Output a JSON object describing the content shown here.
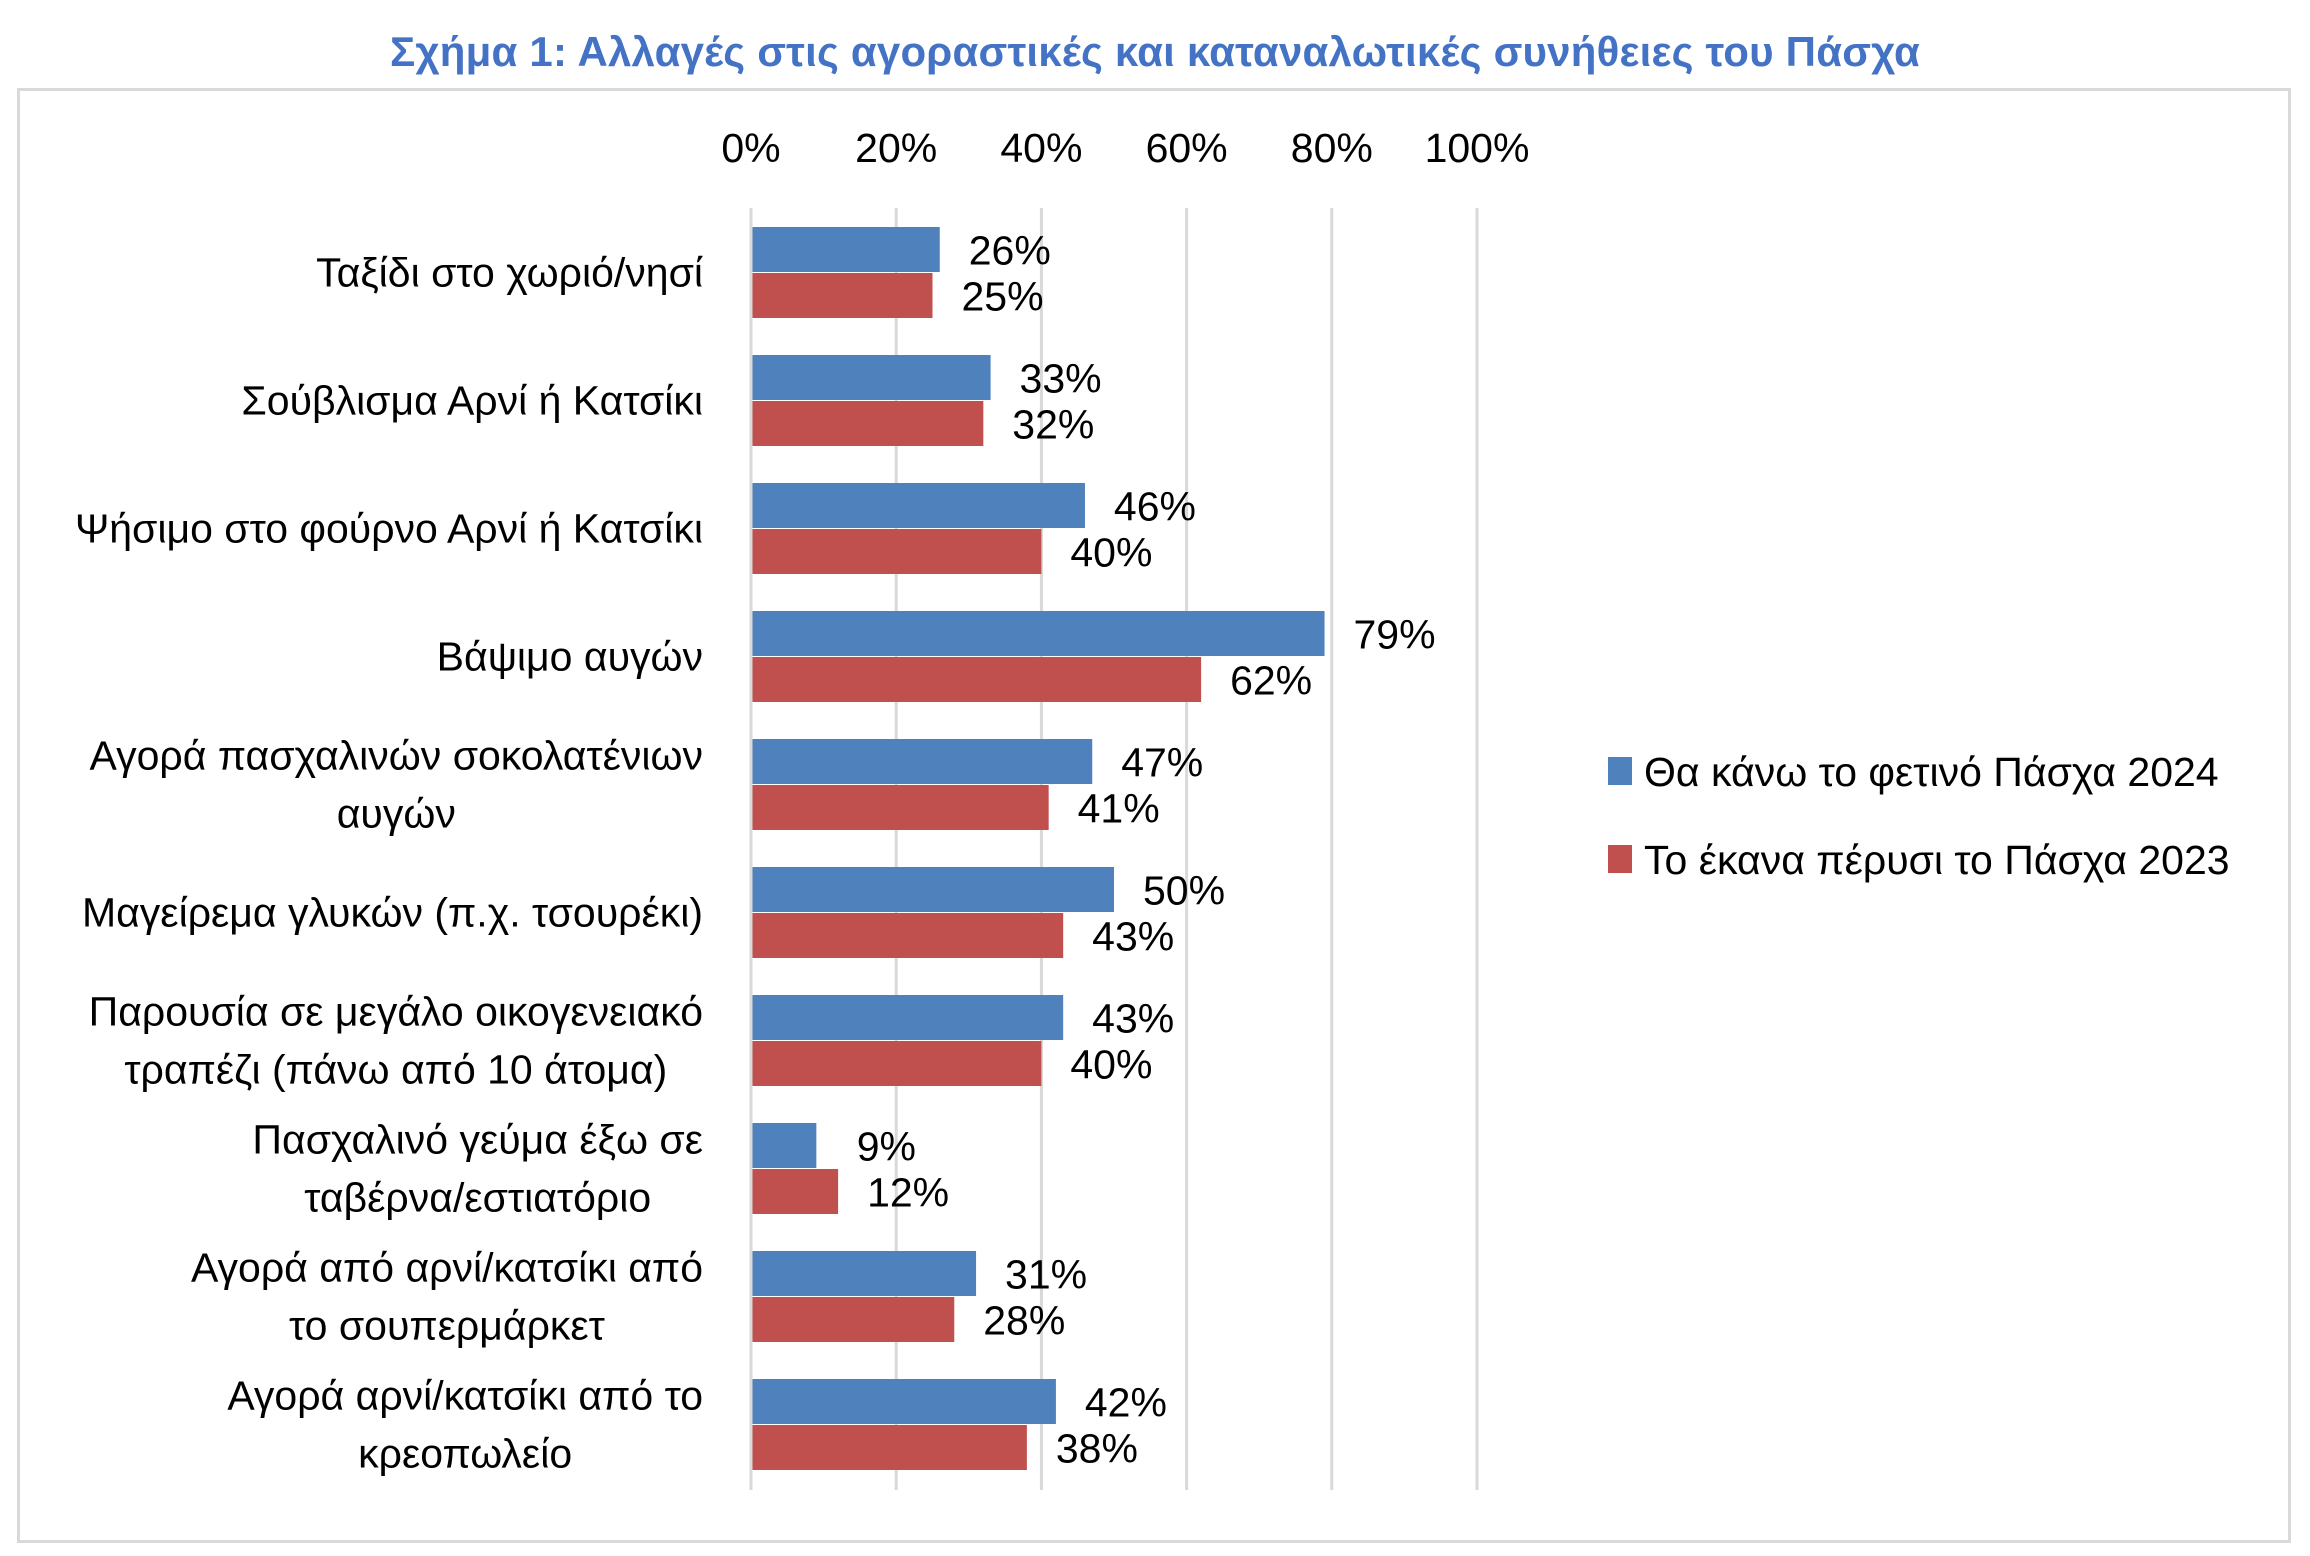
{
  "chart_data": {
    "type": "bar",
    "orientation": "horizontal",
    "title": "Σχήμα 1: Αλλαγές στις αγοραστικές και καταναλωτικές συνήθειες του Πάσχα",
    "categories": [
      [
        "Ταξίδι στο χωριό/νησί"
      ],
      [
        "Σούβλισμα Αρνί ή Κατσίκι"
      ],
      [
        "Ψήσιμο στο φούρνο Αρνί ή Κατσίκι"
      ],
      [
        "Βάψιμο αυγών"
      ],
      [
        "Αγορά πασχαλινών σοκολατένιων",
        "αυγών"
      ],
      [
        "Μαγείρεμα γλυκών (π.χ. τσουρέκι)"
      ],
      [
        "Παρουσία σε μεγάλο οικογενειακό",
        "τραπέζι (πάνω από 10 άτομα)"
      ],
      [
        "Πασχαλινό γεύμα έξω σε",
        "ταβέρνα/εστιατόριο"
      ],
      [
        "Αγορά από αρνί/κατσίκι από",
        "το σουπερμάρκετ"
      ],
      [
        "Αγορά αρνί/κατσίκι από το",
        "κρεοπωλείο"
      ]
    ],
    "series": [
      {
        "name": "Θα κάνω το φετινό Πάσχα 2024",
        "color": "#4f81bd",
        "values": [
          26,
          33,
          46,
          79,
          47,
          50,
          43,
          9,
          31,
          42
        ],
        "labels": [
          "26%",
          "33%",
          "46%",
          "79%",
          "47%",
          "50%",
          "43%",
          "9%",
          "31%",
          "42%"
        ]
      },
      {
        "name": "Το έκανα πέρυσι το Πάσχα 2023",
        "color": "#c0504d",
        "values": [
          25,
          32,
          40,
          62,
          41,
          43,
          40,
          12,
          28,
          38
        ],
        "labels": [
          "25%",
          "32%",
          "40%",
          "62%",
          "41%",
          "43%",
          "40%",
          "12%",
          "28%",
          "38%"
        ]
      }
    ],
    "x_ticks": [
      "0%",
      "20%",
      "40%",
      "60%",
      "80%",
      "100%"
    ],
    "xlim": [
      0,
      100
    ],
    "x_axis_position": "top",
    "grid": true,
    "legend_position": "right"
  }
}
